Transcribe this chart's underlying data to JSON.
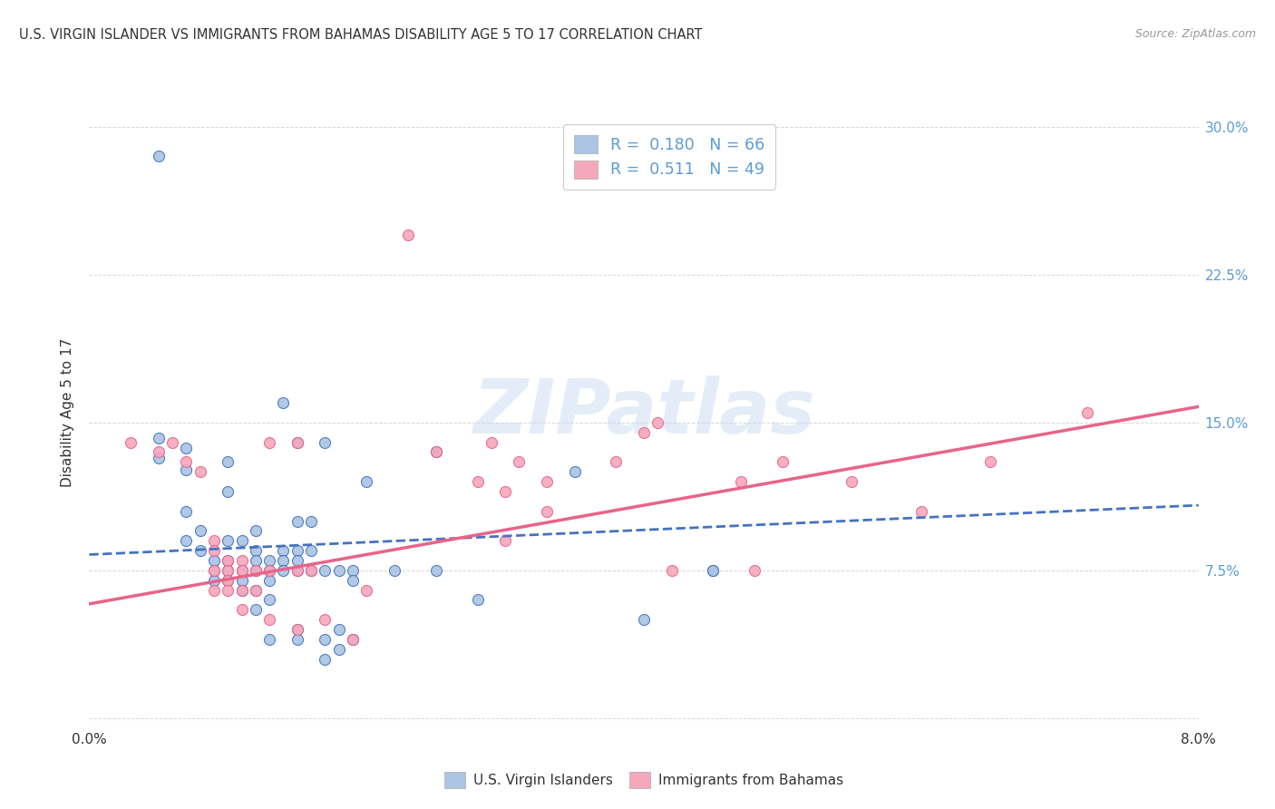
{
  "title": "U.S. VIRGIN ISLANDER VS IMMIGRANTS FROM BAHAMAS DISABILITY AGE 5 TO 17 CORRELATION CHART",
  "source": "Source: ZipAtlas.com",
  "ylabel": "Disability Age 5 to 17",
  "ytick_labels": [
    "",
    "7.5%",
    "15.0%",
    "22.5%",
    "30.0%"
  ],
  "ytick_values": [
    0.0,
    0.075,
    0.15,
    0.225,
    0.3
  ],
  "xmin": 0.0,
  "xmax": 0.08,
  "ymin": -0.005,
  "ymax": 0.315,
  "legend1_R": "0.180",
  "legend1_N": "66",
  "legend2_R": "0.511",
  "legend2_N": "49",
  "color_blue": "#aac4e2",
  "color_pink": "#f5a8bc",
  "line_blue": "#4472c4",
  "line_pink": "#e8648a",
  "watermark_text": "ZIPatlas",
  "scatter_blue": [
    [
      0.005,
      0.285
    ],
    [
      0.005,
      0.142
    ],
    [
      0.005,
      0.132
    ],
    [
      0.007,
      0.137
    ],
    [
      0.007,
      0.126
    ],
    [
      0.007,
      0.105
    ],
    [
      0.007,
      0.09
    ],
    [
      0.008,
      0.095
    ],
    [
      0.008,
      0.085
    ],
    [
      0.009,
      0.08
    ],
    [
      0.009,
      0.075
    ],
    [
      0.009,
      0.07
    ],
    [
      0.01,
      0.13
    ],
    [
      0.01,
      0.115
    ],
    [
      0.01,
      0.09
    ],
    [
      0.01,
      0.08
    ],
    [
      0.01,
      0.075
    ],
    [
      0.01,
      0.07
    ],
    [
      0.011,
      0.09
    ],
    [
      0.011,
      0.075
    ],
    [
      0.011,
      0.07
    ],
    [
      0.011,
      0.065
    ],
    [
      0.012,
      0.095
    ],
    [
      0.012,
      0.085
    ],
    [
      0.012,
      0.08
    ],
    [
      0.012,
      0.075
    ],
    [
      0.012,
      0.065
    ],
    [
      0.012,
      0.055
    ],
    [
      0.013,
      0.08
    ],
    [
      0.013,
      0.075
    ],
    [
      0.013,
      0.07
    ],
    [
      0.013,
      0.06
    ],
    [
      0.013,
      0.04
    ],
    [
      0.014,
      0.16
    ],
    [
      0.014,
      0.085
    ],
    [
      0.014,
      0.08
    ],
    [
      0.014,
      0.075
    ],
    [
      0.015,
      0.14
    ],
    [
      0.015,
      0.1
    ],
    [
      0.015,
      0.085
    ],
    [
      0.015,
      0.08
    ],
    [
      0.015,
      0.075
    ],
    [
      0.015,
      0.045
    ],
    [
      0.015,
      0.04
    ],
    [
      0.016,
      0.1
    ],
    [
      0.016,
      0.085
    ],
    [
      0.016,
      0.075
    ],
    [
      0.017,
      0.14
    ],
    [
      0.017,
      0.075
    ],
    [
      0.017,
      0.04
    ],
    [
      0.017,
      0.03
    ],
    [
      0.018,
      0.075
    ],
    [
      0.018,
      0.045
    ],
    [
      0.018,
      0.035
    ],
    [
      0.019,
      0.075
    ],
    [
      0.019,
      0.07
    ],
    [
      0.019,
      0.04
    ],
    [
      0.02,
      0.12
    ],
    [
      0.022,
      0.075
    ],
    [
      0.025,
      0.135
    ],
    [
      0.025,
      0.075
    ],
    [
      0.028,
      0.06
    ],
    [
      0.035,
      0.125
    ],
    [
      0.04,
      0.05
    ],
    [
      0.045,
      0.075
    ],
    [
      0.045,
      0.075
    ]
  ],
  "scatter_pink": [
    [
      0.003,
      0.14
    ],
    [
      0.005,
      0.135
    ],
    [
      0.006,
      0.14
    ],
    [
      0.007,
      0.13
    ],
    [
      0.008,
      0.125
    ],
    [
      0.009,
      0.09
    ],
    [
      0.009,
      0.085
    ],
    [
      0.009,
      0.075
    ],
    [
      0.009,
      0.065
    ],
    [
      0.01,
      0.08
    ],
    [
      0.01,
      0.075
    ],
    [
      0.01,
      0.07
    ],
    [
      0.01,
      0.065
    ],
    [
      0.011,
      0.08
    ],
    [
      0.011,
      0.075
    ],
    [
      0.011,
      0.065
    ],
    [
      0.011,
      0.055
    ],
    [
      0.012,
      0.075
    ],
    [
      0.012,
      0.065
    ],
    [
      0.013,
      0.14
    ],
    [
      0.013,
      0.075
    ],
    [
      0.013,
      0.05
    ],
    [
      0.015,
      0.14
    ],
    [
      0.015,
      0.075
    ],
    [
      0.015,
      0.045
    ],
    [
      0.016,
      0.075
    ],
    [
      0.017,
      0.05
    ],
    [
      0.019,
      0.04
    ],
    [
      0.02,
      0.065
    ],
    [
      0.023,
      0.245
    ],
    [
      0.025,
      0.135
    ],
    [
      0.028,
      0.12
    ],
    [
      0.029,
      0.14
    ],
    [
      0.03,
      0.115
    ],
    [
      0.03,
      0.09
    ],
    [
      0.031,
      0.13
    ],
    [
      0.033,
      0.12
    ],
    [
      0.033,
      0.105
    ],
    [
      0.038,
      0.13
    ],
    [
      0.04,
      0.145
    ],
    [
      0.041,
      0.15
    ],
    [
      0.042,
      0.075
    ],
    [
      0.047,
      0.12
    ],
    [
      0.048,
      0.075
    ],
    [
      0.05,
      0.13
    ],
    [
      0.055,
      0.12
    ],
    [
      0.06,
      0.105
    ],
    [
      0.065,
      0.13
    ],
    [
      0.072,
      0.155
    ]
  ],
  "blue_line_x": [
    0.0,
    0.08
  ],
  "blue_line_y": [
    0.083,
    0.108
  ],
  "pink_line_x": [
    0.0,
    0.08
  ],
  "pink_line_y": [
    0.058,
    0.158
  ],
  "grid_color": "#d8d8d8",
  "background_color": "#ffffff",
  "text_color": "#333333",
  "tick_color": "#5b9bd5"
}
